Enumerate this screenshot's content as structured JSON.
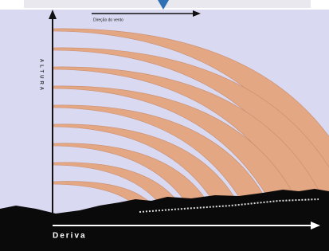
{
  "header": {
    "wind_label": "Direção do vento"
  },
  "axes": {
    "y_label": "ALTURA",
    "x_label": "Deriva"
  }
}
